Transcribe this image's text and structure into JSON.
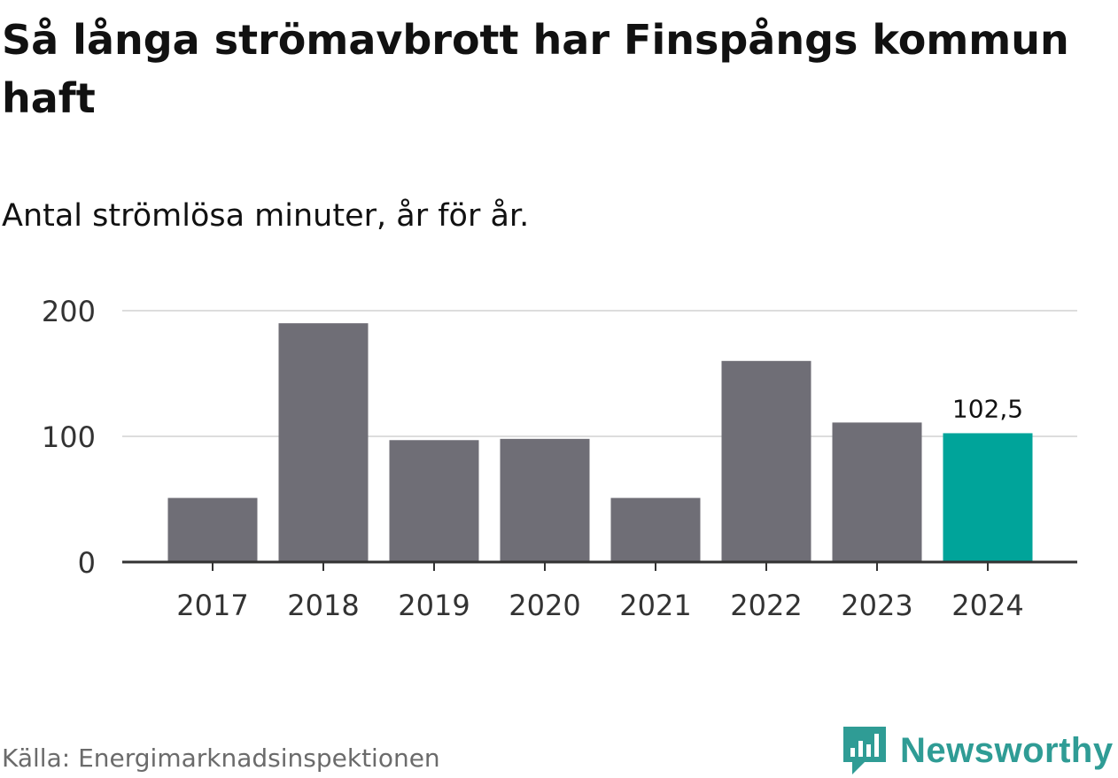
{
  "header": {
    "title": "Så långa strömavbrott har Finspångs kommun haft",
    "subtitle": "Antal strömlösa minuter, år för år."
  },
  "footer": {
    "source": "Källa: Energimarknadsinspektionen",
    "brand": "Newsworthy",
    "brand_icon": "newsworthy-chart-icon"
  },
  "colors": {
    "bar": "#6f6e76",
    "highlight": "#00a49a",
    "grid": "#dddddd",
    "axis": "#333333",
    "brand": "#2f9c95"
  },
  "chart_data": {
    "type": "bar",
    "title": "Så långa strömavbrott har Finspångs kommun haft",
    "subtitle": "Antal strömlösa minuter, år för år.",
    "xlabel": "",
    "ylabel": "",
    "categories": [
      "2017",
      "2018",
      "2019",
      "2020",
      "2021",
      "2022",
      "2023",
      "2024"
    ],
    "values": [
      51,
      190,
      97,
      98,
      51,
      160,
      111,
      102.5
    ],
    "highlight_index": 7,
    "labels": [
      "",
      "",
      "",
      "",
      "",
      "",
      "",
      "102,5"
    ],
    "ylim": [
      0,
      200
    ],
    "yticks": [
      0,
      100,
      200
    ],
    "grid": true
  }
}
